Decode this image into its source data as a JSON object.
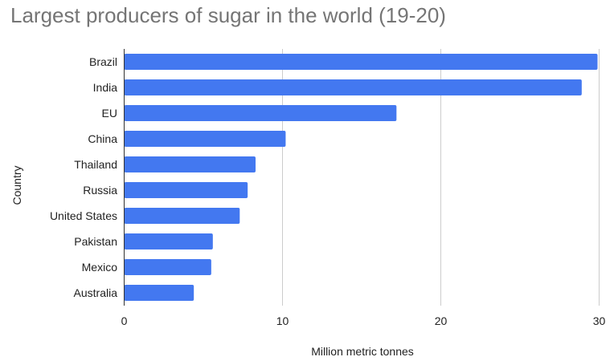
{
  "chart_data": {
    "type": "bar",
    "orientation": "horizontal",
    "title": "Largest producers of sugar in the world (19-20)",
    "xlabel": "Million metric tonnes",
    "ylabel": "Country",
    "categories": [
      "Brazil",
      "India",
      "EU",
      "China",
      "Thailand",
      "Russia",
      "United States",
      "Pakistan",
      "Mexico",
      "Australia"
    ],
    "values": [
      29.9,
      28.9,
      17.2,
      10.2,
      8.3,
      7.8,
      7.3,
      5.6,
      5.5,
      4.4
    ],
    "xlim": [
      0,
      30
    ],
    "xticks": [
      0,
      10,
      20,
      30
    ],
    "grid": true,
    "bar_color": "#4378f0",
    "grid_color": "#cccccc",
    "axis_color": "#333333"
  }
}
